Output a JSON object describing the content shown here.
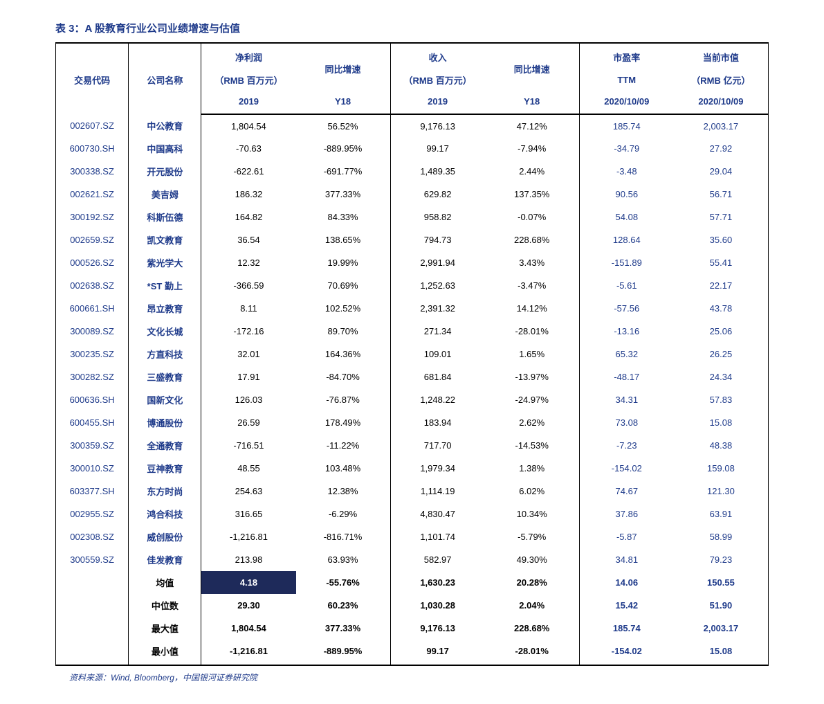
{
  "title": "表 3：A 股教育行业公司业绩增速与估值",
  "source": "资料来源：Wind, Bloomberg，中国银河证券研究院",
  "header": {
    "code": "交易代码",
    "name": "公司名称",
    "profit_l1": "净利润",
    "profit_l2": "（RMB 百万元）",
    "profit_l3": "2019",
    "growth1_l1": "同比增速",
    "growth1_l3": "Y18",
    "revenue_l1": "收入",
    "revenue_l2": "（RMB 百万元）",
    "revenue_l3": "2019",
    "growth2_l1": "同比增速",
    "growth2_l3": "Y18",
    "pe_l1": "市盈率",
    "pe_l2": "TTM",
    "pe_l3": "2020/10/09",
    "mktcap_l1": "当前市值",
    "mktcap_l2": "（RMB 亿元）",
    "mktcap_l3": "2020/10/09"
  },
  "rows": [
    {
      "code": "002607.SZ",
      "name": "中公教育",
      "profit": "1,804.54",
      "g1": "56.52%",
      "rev": "9,176.13",
      "g2": "47.12%",
      "pe": "185.74",
      "cap": "2,003.17"
    },
    {
      "code": "600730.SH",
      "name": "中国高科",
      "profit": "-70.63",
      "g1": "-889.95%",
      "rev": "99.17",
      "g2": "-7.94%",
      "pe": "-34.79",
      "cap": "27.92"
    },
    {
      "code": "300338.SZ",
      "name": "开元股份",
      "profit": "-622.61",
      "g1": "-691.77%",
      "rev": "1,489.35",
      "g2": "2.44%",
      "pe": "-3.48",
      "cap": "29.04"
    },
    {
      "code": "002621.SZ",
      "name": "美吉姆",
      "profit": "186.32",
      "g1": "377.33%",
      "rev": "629.82",
      "g2": "137.35%",
      "pe": "90.56",
      "cap": "56.71"
    },
    {
      "code": "300192.SZ",
      "name": "科斯伍德",
      "profit": "164.82",
      "g1": "84.33%",
      "rev": "958.82",
      "g2": "-0.07%",
      "pe": "54.08",
      "cap": "57.71"
    },
    {
      "code": "002659.SZ",
      "name": "凯文教育",
      "profit": "36.54",
      "g1": "138.65%",
      "rev": "794.73",
      "g2": "228.68%",
      "pe": "128.64",
      "cap": "35.60"
    },
    {
      "code": "000526.SZ",
      "name": "紫光学大",
      "profit": "12.32",
      "g1": "19.99%",
      "rev": "2,991.94",
      "g2": "3.43%",
      "pe": "-151.89",
      "cap": "55.41"
    },
    {
      "code": "002638.SZ",
      "name": "*ST 勤上",
      "profit": "-366.59",
      "g1": "70.69%",
      "rev": "1,252.63",
      "g2": "-3.47%",
      "pe": "-5.61",
      "cap": "22.17"
    },
    {
      "code": "600661.SH",
      "name": "昂立教育",
      "profit": "8.11",
      "g1": "102.52%",
      "rev": "2,391.32",
      "g2": "14.12%",
      "pe": "-57.56",
      "cap": "43.78"
    },
    {
      "code": "300089.SZ",
      "name": "文化长城",
      "profit": "-172.16",
      "g1": "89.70%",
      "rev": "271.34",
      "g2": "-28.01%",
      "pe": "-13.16",
      "cap": "25.06"
    },
    {
      "code": "300235.SZ",
      "name": "方直科技",
      "profit": "32.01",
      "g1": "164.36%",
      "rev": "109.01",
      "g2": "1.65%",
      "pe": "65.32",
      "cap": "26.25"
    },
    {
      "code": "300282.SZ",
      "name": "三盛教育",
      "profit": "17.91",
      "g1": "-84.70%",
      "rev": "681.84",
      "g2": "-13.97%",
      "pe": "-48.17",
      "cap": "24.34"
    },
    {
      "code": "600636.SH",
      "name": "国新文化",
      "profit": "126.03",
      "g1": "-76.87%",
      "rev": "1,248.22",
      "g2": "-24.97%",
      "pe": "34.31",
      "cap": "57.83"
    },
    {
      "code": "600455.SH",
      "name": "博通股份",
      "profit": "26.59",
      "g1": "178.49%",
      "rev": "183.94",
      "g2": "2.62%",
      "pe": "73.08",
      "cap": "15.08"
    },
    {
      "code": "300359.SZ",
      "name": "全通教育",
      "profit": "-716.51",
      "g1": "-11.22%",
      "rev": "717.70",
      "g2": "-14.53%",
      "pe": "-7.23",
      "cap": "48.38"
    },
    {
      "code": "300010.SZ",
      "name": "豆神教育",
      "profit": "48.55",
      "g1": "103.48%",
      "rev": "1,979.34",
      "g2": "1.38%",
      "pe": "-154.02",
      "cap": "159.08"
    },
    {
      "code": "603377.SH",
      "name": "东方时尚",
      "profit": "254.63",
      "g1": "12.38%",
      "rev": "1,114.19",
      "g2": "6.02%",
      "pe": "74.67",
      "cap": "121.30"
    },
    {
      "code": "002955.SZ",
      "name": "鸿合科技",
      "profit": "316.65",
      "g1": "-6.29%",
      "rev": "4,830.47",
      "g2": "10.34%",
      "pe": "37.86",
      "cap": "63.91"
    },
    {
      "code": "002308.SZ",
      "name": "威创股份",
      "profit": "-1,216.81",
      "g1": "-816.71%",
      "rev": "1,101.74",
      "g2": "-5.79%",
      "pe": "-5.87",
      "cap": "58.99"
    },
    {
      "code": "300559.SZ",
      "name": "佳发教育",
      "profit": "213.98",
      "g1": "63.93%",
      "rev": "582.97",
      "g2": "49.30%",
      "pe": "34.81",
      "cap": "79.23"
    }
  ],
  "summary": [
    {
      "label": "均值",
      "profit": "4.18",
      "g1": "-55.76%",
      "rev": "1,630.23",
      "g2": "20.28%",
      "pe": "14.06",
      "cap": "150.55",
      "hl": true
    },
    {
      "label": "中位数",
      "profit": "29.30",
      "g1": "60.23%",
      "rev": "1,030.28",
      "g2": "2.04%",
      "pe": "15.42",
      "cap": "51.90"
    },
    {
      "label": "最大值",
      "profit": "1,804.54",
      "g1": "377.33%",
      "rev": "9,176.13",
      "g2": "228.68%",
      "pe": "185.74",
      "cap": "2,003.17"
    },
    {
      "label": "最小值",
      "profit": "-1,216.81",
      "g1": "-889.95%",
      "rev": "99.17",
      "g2": "-28.01%",
      "pe": "-154.02",
      "cap": "15.08"
    }
  ],
  "colors": {
    "navy": "#1e3a8a",
    "black": "#000000",
    "highlight_bg": "#1e2a5a"
  }
}
